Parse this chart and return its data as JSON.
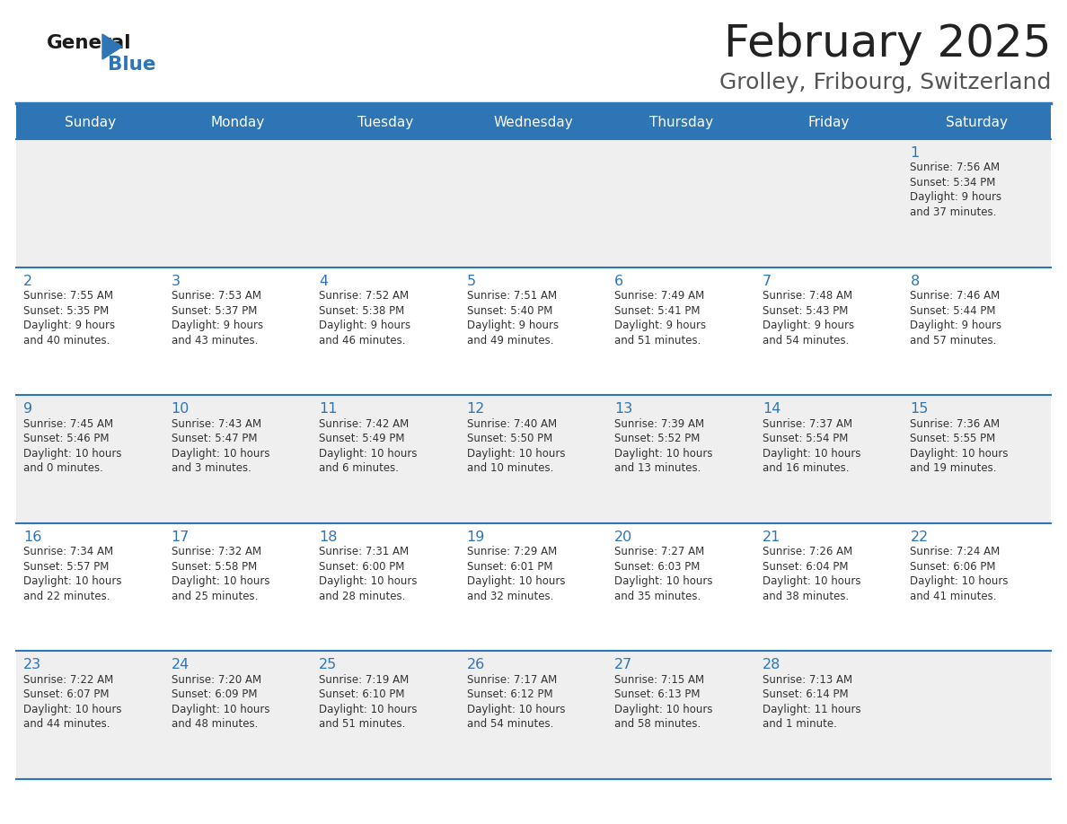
{
  "title": "February 2025",
  "subtitle": "Grolley, Fribourg, Switzerland",
  "days_of_week": [
    "Sunday",
    "Monday",
    "Tuesday",
    "Wednesday",
    "Thursday",
    "Friday",
    "Saturday"
  ],
  "header_bg": "#2E75B6",
  "header_text": "#FFFFFF",
  "cell_bg_light": "#EFEFEF",
  "cell_bg_white": "#FFFFFF",
  "row_divider_color": "#2E75B6",
  "title_color": "#222222",
  "subtitle_color": "#555555",
  "day_number_color": "#2E75B6",
  "cell_text_color": "#333333",
  "logo_general_color": "#1a1a1a",
  "logo_blue_color": "#2E75B6",
  "calendar_data": [
    {
      "day": 1,
      "col": 6,
      "row": 0,
      "sunrise": "7:56 AM",
      "sunset": "5:34 PM",
      "dl1": "Daylight: 9 hours",
      "dl2": "and 37 minutes."
    },
    {
      "day": 2,
      "col": 0,
      "row": 1,
      "sunrise": "7:55 AM",
      "sunset": "5:35 PM",
      "dl1": "Daylight: 9 hours",
      "dl2": "and 40 minutes."
    },
    {
      "day": 3,
      "col": 1,
      "row": 1,
      "sunrise": "7:53 AM",
      "sunset": "5:37 PM",
      "dl1": "Daylight: 9 hours",
      "dl2": "and 43 minutes."
    },
    {
      "day": 4,
      "col": 2,
      "row": 1,
      "sunrise": "7:52 AM",
      "sunset": "5:38 PM",
      "dl1": "Daylight: 9 hours",
      "dl2": "and 46 minutes."
    },
    {
      "day": 5,
      "col": 3,
      "row": 1,
      "sunrise": "7:51 AM",
      "sunset": "5:40 PM",
      "dl1": "Daylight: 9 hours",
      "dl2": "and 49 minutes."
    },
    {
      "day": 6,
      "col": 4,
      "row": 1,
      "sunrise": "7:49 AM",
      "sunset": "5:41 PM",
      "dl1": "Daylight: 9 hours",
      "dl2": "and 51 minutes."
    },
    {
      "day": 7,
      "col": 5,
      "row": 1,
      "sunrise": "7:48 AM",
      "sunset": "5:43 PM",
      "dl1": "Daylight: 9 hours",
      "dl2": "and 54 minutes."
    },
    {
      "day": 8,
      "col": 6,
      "row": 1,
      "sunrise": "7:46 AM",
      "sunset": "5:44 PM",
      "dl1": "Daylight: 9 hours",
      "dl2": "and 57 minutes."
    },
    {
      "day": 9,
      "col": 0,
      "row": 2,
      "sunrise": "7:45 AM",
      "sunset": "5:46 PM",
      "dl1": "Daylight: 10 hours",
      "dl2": "and 0 minutes."
    },
    {
      "day": 10,
      "col": 1,
      "row": 2,
      "sunrise": "7:43 AM",
      "sunset": "5:47 PM",
      "dl1": "Daylight: 10 hours",
      "dl2": "and 3 minutes."
    },
    {
      "day": 11,
      "col": 2,
      "row": 2,
      "sunrise": "7:42 AM",
      "sunset": "5:49 PM",
      "dl1": "Daylight: 10 hours",
      "dl2": "and 6 minutes."
    },
    {
      "day": 12,
      "col": 3,
      "row": 2,
      "sunrise": "7:40 AM",
      "sunset": "5:50 PM",
      "dl1": "Daylight: 10 hours",
      "dl2": "and 10 minutes."
    },
    {
      "day": 13,
      "col": 4,
      "row": 2,
      "sunrise": "7:39 AM",
      "sunset": "5:52 PM",
      "dl1": "Daylight: 10 hours",
      "dl2": "and 13 minutes."
    },
    {
      "day": 14,
      "col": 5,
      "row": 2,
      "sunrise": "7:37 AM",
      "sunset": "5:54 PM",
      "dl1": "Daylight: 10 hours",
      "dl2": "and 16 minutes."
    },
    {
      "day": 15,
      "col": 6,
      "row": 2,
      "sunrise": "7:36 AM",
      "sunset": "5:55 PM",
      "dl1": "Daylight: 10 hours",
      "dl2": "and 19 minutes."
    },
    {
      "day": 16,
      "col": 0,
      "row": 3,
      "sunrise": "7:34 AM",
      "sunset": "5:57 PM",
      "dl1": "Daylight: 10 hours",
      "dl2": "and 22 minutes."
    },
    {
      "day": 17,
      "col": 1,
      "row": 3,
      "sunrise": "7:32 AM",
      "sunset": "5:58 PM",
      "dl1": "Daylight: 10 hours",
      "dl2": "and 25 minutes."
    },
    {
      "day": 18,
      "col": 2,
      "row": 3,
      "sunrise": "7:31 AM",
      "sunset": "6:00 PM",
      "dl1": "Daylight: 10 hours",
      "dl2": "and 28 minutes."
    },
    {
      "day": 19,
      "col": 3,
      "row": 3,
      "sunrise": "7:29 AM",
      "sunset": "6:01 PM",
      "dl1": "Daylight: 10 hours",
      "dl2": "and 32 minutes."
    },
    {
      "day": 20,
      "col": 4,
      "row": 3,
      "sunrise": "7:27 AM",
      "sunset": "6:03 PM",
      "dl1": "Daylight: 10 hours",
      "dl2": "and 35 minutes."
    },
    {
      "day": 21,
      "col": 5,
      "row": 3,
      "sunrise": "7:26 AM",
      "sunset": "6:04 PM",
      "dl1": "Daylight: 10 hours",
      "dl2": "and 38 minutes."
    },
    {
      "day": 22,
      "col": 6,
      "row": 3,
      "sunrise": "7:24 AM",
      "sunset": "6:06 PM",
      "dl1": "Daylight: 10 hours",
      "dl2": "and 41 minutes."
    },
    {
      "day": 23,
      "col": 0,
      "row": 4,
      "sunrise": "7:22 AM",
      "sunset": "6:07 PM",
      "dl1": "Daylight: 10 hours",
      "dl2": "and 44 minutes."
    },
    {
      "day": 24,
      "col": 1,
      "row": 4,
      "sunrise": "7:20 AM",
      "sunset": "6:09 PM",
      "dl1": "Daylight: 10 hours",
      "dl2": "and 48 minutes."
    },
    {
      "day": 25,
      "col": 2,
      "row": 4,
      "sunrise": "7:19 AM",
      "sunset": "6:10 PM",
      "dl1": "Daylight: 10 hours",
      "dl2": "and 51 minutes."
    },
    {
      "day": 26,
      "col": 3,
      "row": 4,
      "sunrise": "7:17 AM",
      "sunset": "6:12 PM",
      "dl1": "Daylight: 10 hours",
      "dl2": "and 54 minutes."
    },
    {
      "day": 27,
      "col": 4,
      "row": 4,
      "sunrise": "7:15 AM",
      "sunset": "6:13 PM",
      "dl1": "Daylight: 10 hours",
      "dl2": "and 58 minutes."
    },
    {
      "day": 28,
      "col": 5,
      "row": 4,
      "sunrise": "7:13 AM",
      "sunset": "6:14 PM",
      "dl1": "Daylight: 11 hours",
      "dl2": "and 1 minute."
    }
  ],
  "num_rows": 5,
  "num_cols": 7,
  "figsize": [
    11.88,
    9.18
  ],
  "dpi": 100
}
